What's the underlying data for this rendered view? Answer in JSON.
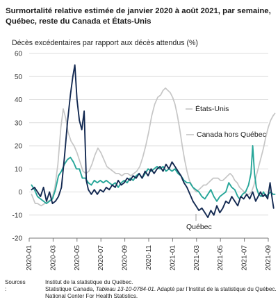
{
  "chart_data": {
    "type": "line",
    "title": "Surmortalité relative estimée de janvier 2020 à août 2021, par semaine, Québec, reste du Canada et États-Unis",
    "title_lines": [
      "Surmortalité relative estimée de janvier 2020 à août 2021, par semaine,",
      "Québec, reste du Canada et États-Unis"
    ],
    "ylabel": "Décès excédentaires par rapport aux décès attendus (%)",
    "xlabel": "",
    "ylim": [
      -20,
      60
    ],
    "yticks": [
      60,
      50,
      40,
      30,
      20,
      10,
      0,
      -10,
      -20
    ],
    "xlim": [
      "2020-01",
      "2021-09"
    ],
    "xticks": [
      "2020-01",
      "2020-03",
      "2020-05",
      "2020-07",
      "2020-09",
      "2020-11",
      "2021-01",
      "2021-03",
      "2021-05",
      "2021-07",
      "2021-09"
    ],
    "grid": "horizontal",
    "colors": {
      "quebec": "#142a52",
      "canada": "#27a699",
      "usa": "#c6c6c6"
    },
    "series": [
      {
        "name": "États-Unis",
        "values": [
          [
            0.2,
            -1
          ],
          [
            0.35,
            -3
          ],
          [
            0.5,
            -5
          ],
          [
            0.7,
            -5
          ],
          [
            1.0,
            -6
          ],
          [
            1.3,
            -5
          ],
          [
            1.6,
            -4
          ],
          [
            1.9,
            -3
          ],
          [
            2.15,
            2
          ],
          [
            2.4,
            12
          ],
          [
            2.65,
            28
          ],
          [
            2.85,
            36
          ],
          [
            3.05,
            32
          ],
          [
            3.25,
            26
          ],
          [
            3.5,
            22
          ],
          [
            3.75,
            20
          ],
          [
            4.0,
            17
          ],
          [
            4.25,
            13
          ],
          [
            4.5,
            9
          ],
          [
            4.75,
            8
          ],
          [
            5.0,
            9
          ],
          [
            5.25,
            12
          ],
          [
            5.5,
            16
          ],
          [
            5.75,
            19
          ],
          [
            6.0,
            17
          ],
          [
            6.25,
            14
          ],
          [
            6.5,
            11
          ],
          [
            6.75,
            10
          ],
          [
            7.0,
            9
          ],
          [
            7.25,
            8
          ],
          [
            7.5,
            8
          ],
          [
            7.75,
            7
          ],
          [
            8.0,
            8
          ],
          [
            8.25,
            8
          ],
          [
            8.5,
            7
          ],
          [
            8.75,
            8
          ],
          [
            9.0,
            9
          ],
          [
            9.25,
            11
          ],
          [
            9.5,
            15
          ],
          [
            9.75,
            20
          ],
          [
            10.0,
            26
          ],
          [
            10.25,
            33
          ],
          [
            10.5,
            38
          ],
          [
            10.75,
            41
          ],
          [
            11.0,
            42
          ],
          [
            11.2,
            44
          ],
          [
            11.4,
            45
          ],
          [
            11.6,
            44
          ],
          [
            11.8,
            43
          ],
          [
            12.0,
            41
          ],
          [
            12.2,
            38
          ],
          [
            12.4,
            33
          ],
          [
            12.6,
            27
          ],
          [
            12.8,
            20
          ],
          [
            13.0,
            14
          ],
          [
            13.2,
            9
          ],
          [
            13.4,
            5
          ],
          [
            13.6,
            3
          ],
          [
            13.8,
            1
          ],
          [
            14.0,
            0
          ],
          [
            14.2,
            1
          ],
          [
            14.4,
            2
          ],
          [
            14.6,
            3
          ],
          [
            14.8,
            3
          ],
          [
            15.0,
            4
          ],
          [
            15.2,
            5
          ],
          [
            15.4,
            6
          ],
          [
            15.6,
            6
          ],
          [
            15.8,
            6
          ],
          [
            16.0,
            5
          ],
          [
            16.2,
            5
          ],
          [
            16.4,
            6
          ],
          [
            16.6,
            7
          ],
          [
            16.8,
            8
          ],
          [
            17.0,
            7
          ],
          [
            17.2,
            5
          ],
          [
            17.4,
            4
          ],
          [
            17.6,
            2
          ],
          [
            17.8,
            1
          ],
          [
            18.0,
            0
          ],
          [
            18.2,
            -1
          ],
          [
            18.4,
            -1
          ],
          [
            18.6,
            0
          ],
          [
            18.8,
            3
          ],
          [
            19.0,
            7
          ],
          [
            19.2,
            11
          ],
          [
            19.4,
            15
          ],
          [
            19.6,
            19
          ],
          [
            19.8,
            24
          ],
          [
            20.0,
            28
          ],
          [
            20.2,
            31
          ],
          [
            20.4,
            33
          ],
          [
            20.55,
            34
          ]
        ]
      },
      {
        "name": "Canada hors Québec",
        "values": [
          [
            0.2,
            3
          ],
          [
            0.45,
            1
          ],
          [
            0.7,
            -2
          ],
          [
            0.95,
            -3
          ],
          [
            1.2,
            -4
          ],
          [
            1.45,
            -5
          ],
          [
            1.7,
            -4
          ],
          [
            1.95,
            -3
          ],
          [
            2.2,
            1
          ],
          [
            2.45,
            7
          ],
          [
            2.7,
            9
          ],
          [
            2.95,
            12
          ],
          [
            3.2,
            14
          ],
          [
            3.45,
            15
          ],
          [
            3.7,
            13
          ],
          [
            3.95,
            10
          ],
          [
            4.2,
            10
          ],
          [
            4.45,
            6
          ],
          [
            4.7,
            6
          ],
          [
            4.95,
            4
          ],
          [
            5.2,
            3
          ],
          [
            5.45,
            5
          ],
          [
            5.7,
            4
          ],
          [
            5.95,
            5
          ],
          [
            6.2,
            4
          ],
          [
            6.45,
            5
          ],
          [
            6.7,
            4
          ],
          [
            6.95,
            3
          ],
          [
            7.2,
            4
          ],
          [
            7.45,
            2
          ],
          [
            7.7,
            4
          ],
          [
            7.95,
            5
          ],
          [
            8.2,
            4
          ],
          [
            8.45,
            6
          ],
          [
            8.7,
            5
          ],
          [
            8.95,
            7
          ],
          [
            9.2,
            8
          ],
          [
            9.45,
            6
          ],
          [
            9.7,
            8
          ],
          [
            9.95,
            10
          ],
          [
            10.2,
            9
          ],
          [
            10.45,
            10
          ],
          [
            10.7,
            11
          ],
          [
            10.95,
            10
          ],
          [
            11.2,
            11
          ],
          [
            11.45,
            9
          ],
          [
            11.7,
            10
          ],
          [
            11.95,
            9
          ],
          [
            12.2,
            10
          ],
          [
            12.45,
            8
          ],
          [
            12.7,
            7
          ],
          [
            12.95,
            5
          ],
          [
            13.2,
            4
          ],
          [
            13.45,
            4
          ],
          [
            13.7,
            2
          ],
          [
            13.95,
            1
          ],
          [
            14.2,
            0
          ],
          [
            14.45,
            -2
          ],
          [
            14.7,
            -3
          ],
          [
            14.95,
            -1
          ],
          [
            15.2,
            1
          ],
          [
            15.45,
            -2
          ],
          [
            15.7,
            -4
          ],
          [
            15.95,
            -2
          ],
          [
            16.2,
            -1
          ],
          [
            16.45,
            0
          ],
          [
            16.7,
            4
          ],
          [
            16.95,
            2
          ],
          [
            17.2,
            1
          ],
          [
            17.45,
            -2
          ],
          [
            17.6,
            -3
          ],
          [
            17.85,
            -1
          ],
          [
            18.1,
            0
          ],
          [
            18.35,
            3
          ],
          [
            18.55,
            8
          ],
          [
            18.7,
            20
          ],
          [
            18.85,
            8
          ],
          [
            19.0,
            2
          ],
          [
            19.2,
            -1
          ],
          [
            19.4,
            -2
          ],
          [
            19.6,
            0
          ],
          [
            19.8,
            -2
          ],
          [
            20.0,
            -1
          ],
          [
            20.2,
            0
          ],
          [
            20.4,
            -1
          ],
          [
            20.55,
            -1
          ]
        ]
      },
      {
        "name": "Québec",
        "values": [
          [
            0.2,
            1
          ],
          [
            0.45,
            2
          ],
          [
            0.7,
            0
          ],
          [
            0.95,
            -2
          ],
          [
            1.2,
            2
          ],
          [
            1.45,
            -4
          ],
          [
            1.7,
            0
          ],
          [
            1.95,
            -5
          ],
          [
            2.2,
            -4
          ],
          [
            2.45,
            -2
          ],
          [
            2.7,
            2
          ],
          [
            2.95,
            15
          ],
          [
            3.2,
            30
          ],
          [
            3.45,
            42
          ],
          [
            3.65,
            50
          ],
          [
            3.82,
            55
          ],
          [
            4.0,
            40
          ],
          [
            4.2,
            31
          ],
          [
            4.4,
            27
          ],
          [
            4.6,
            35
          ],
          [
            4.78,
            5
          ],
          [
            4.95,
            1
          ],
          [
            5.2,
            -1
          ],
          [
            5.45,
            1
          ],
          [
            5.7,
            -1
          ],
          [
            5.95,
            1
          ],
          [
            6.2,
            0
          ],
          [
            6.45,
            2
          ],
          [
            6.7,
            1
          ],
          [
            6.95,
            3
          ],
          [
            7.2,
            2
          ],
          [
            7.45,
            5
          ],
          [
            7.7,
            3
          ],
          [
            7.95,
            4
          ],
          [
            8.2,
            6
          ],
          [
            8.45,
            5
          ],
          [
            8.7,
            7
          ],
          [
            8.95,
            6
          ],
          [
            9.2,
            8
          ],
          [
            9.45,
            6
          ],
          [
            9.7,
            9
          ],
          [
            9.95,
            7
          ],
          [
            10.2,
            10
          ],
          [
            10.45,
            8
          ],
          [
            10.7,
            10
          ],
          [
            10.95,
            11
          ],
          [
            11.2,
            9
          ],
          [
            11.45,
            12
          ],
          [
            11.7,
            10
          ],
          [
            11.95,
            13
          ],
          [
            12.2,
            11
          ],
          [
            12.45,
            9
          ],
          [
            12.7,
            7
          ],
          [
            12.95,
            4
          ],
          [
            13.2,
            2
          ],
          [
            13.45,
            -1
          ],
          [
            13.7,
            -4
          ],
          [
            13.95,
            -6
          ],
          [
            14.2,
            -8
          ],
          [
            14.45,
            -7
          ],
          [
            14.7,
            -9
          ],
          [
            14.95,
            -11
          ],
          [
            15.2,
            -8
          ],
          [
            15.45,
            -10
          ],
          [
            15.7,
            -6
          ],
          [
            15.95,
            -9
          ],
          [
            16.2,
            -7
          ],
          [
            16.45,
            -4
          ],
          [
            16.7,
            -5
          ],
          [
            16.95,
            -2
          ],
          [
            17.2,
            -4
          ],
          [
            17.45,
            -6
          ],
          [
            17.7,
            -2
          ],
          [
            17.95,
            -3
          ],
          [
            18.2,
            -1
          ],
          [
            18.45,
            -3
          ],
          [
            18.7,
            0
          ],
          [
            18.95,
            -4
          ],
          [
            19.15,
            -2
          ],
          [
            19.35,
            0
          ],
          [
            19.55,
            -2
          ],
          [
            19.75,
            -1
          ],
          [
            19.95,
            -3
          ],
          [
            20.15,
            4
          ],
          [
            20.3,
            -2
          ],
          [
            20.45,
            -7
          ]
        ]
      }
    ],
    "annotations": [
      {
        "text": "États-Unis",
        "series": "États-Unis"
      },
      {
        "text": "Canada hors Québec",
        "series": "Canada hors Québec"
      },
      {
        "text": "Québec",
        "series": "Québec"
      }
    ]
  },
  "sources": {
    "label": "Sources :",
    "line1": "Institut de la statistique du Québec.",
    "line2_prefix": "Statistique Canada, ",
    "line2_italic": "Tableau 13-10-0784-01",
    "line2_suffix": ". Adapté par l’Institut de la statistique du Québec.",
    "line3": "National Center For Health Statistics."
  }
}
